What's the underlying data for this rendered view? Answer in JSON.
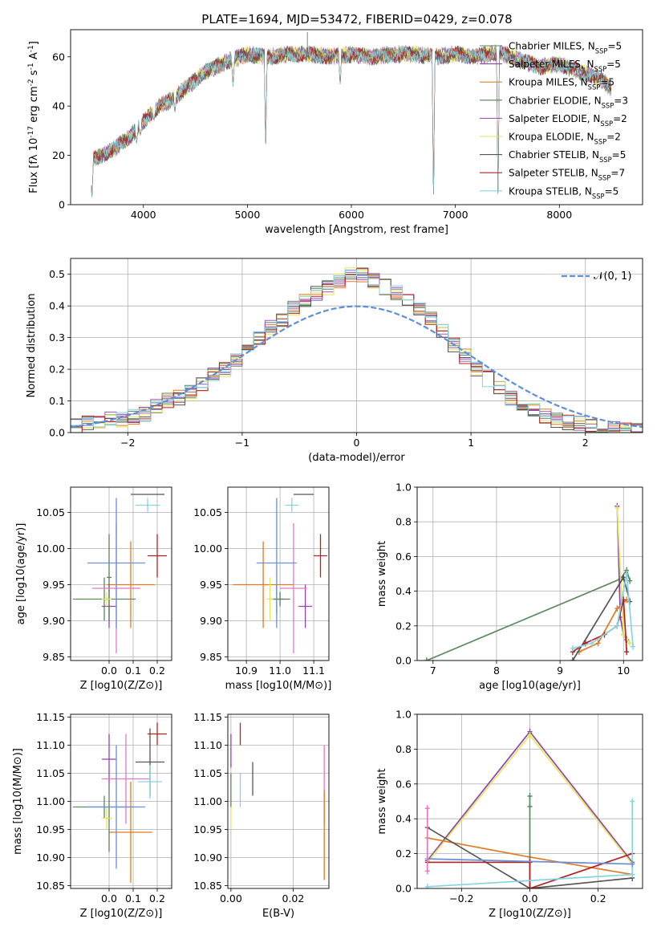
{
  "palette": [
    "#5a8a5e",
    "#8e44ad",
    "#e07b24",
    "#5b7e5d",
    "#9b59b6",
    "#e6e65a",
    "#555555",
    "#b22222",
    "#86d4e0",
    "#e377c2",
    "#6a8fd8"
  ],
  "chart_data": [
    {
      "id": "spectrum",
      "type": "line",
      "title": "PLATE=1694, MJD=53472, FIBERID=0429, z=0.078",
      "xlabel": "wavelength [Angstrom, rest frame]",
      "ylabel": "Flux [f_λ 10^-17 erg cm^-2 s^-1 A^-1]",
      "xlim": [
        3300,
        8800
      ],
      "ylim": [
        0,
        71
      ],
      "xticks": [
        4000,
        5000,
        6000,
        7000,
        8000
      ],
      "yticks": [
        0,
        20,
        40,
        60
      ],
      "legend_position": "upper right",
      "series": [
        {
          "name": "Chabrier MILES, N_SSP=5",
          "color": "#5a8a5e"
        },
        {
          "name": "Salpeter MILES, N_SSP=5",
          "color": "#8e44ad"
        },
        {
          "name": "Kroupa MILES, N_SSP=5",
          "color": "#e07b24"
        },
        {
          "name": "Chabrier ELODIE, N_SSP=3",
          "color": "#5b7e5d"
        },
        {
          "name": "Salpeter ELODIE, N_SSP=2",
          "color": "#9b59b6"
        },
        {
          "name": "Kroupa ELODIE, N_SSP=2",
          "color": "#e6e65a"
        },
        {
          "name": "Chabrier STELIB, N_SSP=5",
          "color": "#555555"
        },
        {
          "name": "Salpeter STELIB, N_SSP=7",
          "color": "#b22222"
        },
        {
          "name": "Kroupa STELIB, N_SSP=5",
          "color": "#86d4e0"
        }
      ],
      "continuum": {
        "x": [
          3500,
          3700,
          3850,
          3950,
          4050,
          4150,
          4250,
          4400,
          4600,
          4800,
          5000,
          5200,
          5400,
          5600,
          5800,
          6000,
          6200,
          6400,
          6600,
          6800,
          7000,
          7200,
          7400,
          7600,
          7800,
          8000,
          8200,
          8400,
          8500
        ],
        "y": [
          18,
          22,
          27,
          31,
          36,
          40,
          42,
          47,
          54,
          58,
          61,
          60,
          61,
          61,
          60,
          61,
          60,
          61,
          61,
          60,
          61,
          60,
          62,
          59,
          56,
          57,
          54,
          51,
          47
        ]
      },
      "drops": [
        {
          "x": 3505,
          "y": 2
        },
        {
          "x": 3935,
          "y": 25
        },
        {
          "x": 3972,
          "y": 28
        },
        {
          "x": 4102,
          "y": 34
        },
        {
          "x": 4303,
          "y": 37
        },
        {
          "x": 4862,
          "y": 48
        },
        {
          "x": 5176,
          "y": 22
        },
        {
          "x": 5892,
          "y": 48
        },
        {
          "x": 6790,
          "y": 0
        },
        {
          "x": 7410,
          "y": 0
        }
      ],
      "spikes": [
        {
          "x": 5577,
          "y": 70
        }
      ]
    },
    {
      "id": "residuals",
      "type": "histogram",
      "xlabel": "(data-model)/error",
      "ylabel": "Normed distribution",
      "xlim": [
        -2.5,
        2.5
      ],
      "ylim": [
        0,
        0.55
      ],
      "xticks": [
        -2,
        -1,
        0,
        1,
        2
      ],
      "yticks": [
        0,
        0.1,
        0.2,
        0.3,
        0.4,
        0.5
      ],
      "bin_width": 0.1,
      "reference": {
        "name": "𝒩(0, 1)",
        "color": "#5f8fd7"
      },
      "shape_values": [
        0.02,
        0.03,
        0.03,
        0.04,
        0.04,
        0.05,
        0.06,
        0.08,
        0.1,
        0.11,
        0.13,
        0.15,
        0.18,
        0.2,
        0.23,
        0.27,
        0.3,
        0.33,
        0.36,
        0.39,
        0.42,
        0.44,
        0.46,
        0.48,
        0.5,
        0.5,
        0.48,
        0.46,
        0.44,
        0.42,
        0.39,
        0.36,
        0.32,
        0.28,
        0.24,
        0.2,
        0.17,
        0.14,
        0.11,
        0.09,
        0.07,
        0.05,
        0.04,
        0.03,
        0.03,
        0.02,
        0.02,
        0.01,
        0.01,
        0.01
      ]
    },
    {
      "id": "age_vs_Z",
      "type": "errorbar",
      "xlabel": "Z [log10(Z/Z⊙)]",
      "ylabel": "age  [log10(age/yr)]",
      "xlim": [
        -0.16,
        0.26
      ],
      "ylim": [
        9.845,
        10.085
      ],
      "xticks": [
        0.0,
        0.1,
        0.2
      ],
      "yticks": [
        9.85,
        9.9,
        9.95,
        10.0,
        10.05
      ],
      "points": [
        {
          "x": -0.02,
          "y": 9.93,
          "xerr": 0.13,
          "yerr": 0.03,
          "color": "#5a8a5e"
        },
        {
          "x": 0.0,
          "y": 9.92,
          "xerr": 0.03,
          "yerr": 0.03,
          "color": "#8e44ad"
        },
        {
          "x": 0.09,
          "y": 9.95,
          "xerr": 0.1,
          "yerr": 0.06,
          "color": "#e07b24"
        },
        {
          "x": 0.0,
          "y": 9.96,
          "xerr": 0.01,
          "yerr": 0.06,
          "color": "#5b7e5d"
        },
        {
          "x": 0.03,
          "y": 9.945,
          "xerr": 0.1,
          "yerr": 0.09,
          "color": "#e377c2"
        },
        {
          "x": -0.01,
          "y": 9.93,
          "xerr": 0.02,
          "yerr": 0.01,
          "color": "#e6e65a"
        },
        {
          "x": 0.03,
          "y": 9.98,
          "xerr": 0.12,
          "yerr": 0.09,
          "color": "#6a8fd8"
        },
        {
          "x": 0.16,
          "y": 10.075,
          "xerr": 0.07,
          "yerr": 0.0,
          "color": "#555555"
        },
        {
          "x": 0.2,
          "y": 9.99,
          "xerr": 0.04,
          "yerr": 0.03,
          "color": "#b22222"
        },
        {
          "x": 0.16,
          "y": 10.06,
          "xerr": 0.05,
          "yerr": 0.01,
          "color": "#86d4e0"
        }
      ]
    },
    {
      "id": "age_vs_mass",
      "type": "errorbar",
      "xlabel": "mass [log10(M/M⊙)]",
      "ylabel": "",
      "xlim": [
        10.845,
        11.145
      ],
      "ylim": [
        9.845,
        10.085
      ],
      "xticks": [
        10.9,
        11.0,
        11.1
      ],
      "yticks": [
        9.85,
        9.9,
        9.95,
        10.0,
        10.05
      ],
      "points": [
        {
          "x": 10.99,
          "y": 9.93,
          "xerr": 0.02,
          "yerr": 0.02,
          "color": "#5a8a5e"
        },
        {
          "x": 11.075,
          "y": 9.92,
          "xerr": 0.02,
          "yerr": 0.03,
          "color": "#8e44ad"
        },
        {
          "x": 10.95,
          "y": 9.95,
          "xerr": 0.09,
          "yerr": 0.06,
          "color": "#e07b24"
        },
        {
          "x": 11.0,
          "y": 9.93,
          "xerr": 0.03,
          "yerr": 0.01,
          "color": "#5b7e5d"
        },
        {
          "x": 11.04,
          "y": 9.945,
          "xerr": 0.04,
          "yerr": 0.09,
          "color": "#e377c2"
        },
        {
          "x": 10.97,
          "y": 9.93,
          "xerr": 0.01,
          "yerr": 0.03,
          "color": "#e6e65a"
        },
        {
          "x": 10.99,
          "y": 9.98,
          "xerr": 0.06,
          "yerr": 0.09,
          "color": "#6a8fd8"
        },
        {
          "x": 11.07,
          "y": 10.075,
          "xerr": 0.03,
          "yerr": 0.0,
          "color": "#555555"
        },
        {
          "x": 11.12,
          "y": 9.99,
          "xerr": 0.02,
          "yerr": 0.03,
          "color": "#b22222"
        },
        {
          "x": 11.035,
          "y": 10.06,
          "xerr": 0.02,
          "yerr": 0.01,
          "color": "#86d4e0"
        }
      ]
    },
    {
      "id": "weight_vs_age",
      "type": "line",
      "xlabel": "age  [log10(age/yr)]",
      "ylabel": "mass weight",
      "xlim": [
        6.75,
        10.3
      ],
      "ylim": [
        0,
        1
      ],
      "xticks": [
        7,
        8,
        9,
        10
      ],
      "yticks": [
        0,
        0.2,
        0.4,
        0.6,
        0.8,
        1.0
      ],
      "series": [
        {
          "color": "#5a8a5e",
          "x": [
            6.9,
            9.95,
            10.05,
            10.1
          ],
          "y": [
            0.0,
            0.47,
            0.52,
            0.46
          ]
        },
        {
          "color": "#8e44ad",
          "x": [
            9.9,
            9.95,
            10.0,
            10.05
          ],
          "y": [
            0.89,
            0.25,
            0.15,
            0.12
          ]
        },
        {
          "color": "#e07b24",
          "x": [
            9.3,
            9.6,
            9.9,
            10.05
          ],
          "y": [
            0.05,
            0.1,
            0.3,
            0.35
          ]
        },
        {
          "color": "#e6e65a",
          "x": [
            9.9,
            10.0,
            10.1
          ],
          "y": [
            0.88,
            0.15,
            0.1
          ]
        },
        {
          "color": "#555555",
          "x": [
            9.2,
            10.0,
            10.1
          ],
          "y": [
            0.0,
            0.48,
            0.34
          ]
        },
        {
          "color": "#b22222",
          "x": [
            9.2,
            9.4,
            9.7,
            9.9,
            10.0,
            10.05
          ],
          "y": [
            0.05,
            0.1,
            0.15,
            0.2,
            0.35,
            0.05
          ]
        },
        {
          "color": "#86d4e0",
          "x": [
            9.2,
            9.5,
            9.9,
            10.05,
            10.15
          ],
          "y": [
            0.07,
            0.1,
            0.2,
            0.5,
            0.08
          ]
        }
      ]
    },
    {
      "id": "mass_vs_Z",
      "type": "errorbar",
      "xlabel": "Z [log10(Z/Z⊙)]",
      "ylabel": "mass [log10(M/M⊙)]",
      "xlim": [
        -0.16,
        0.26
      ],
      "ylim": [
        10.845,
        11.155
      ],
      "xticks": [
        0.0,
        0.1,
        0.2
      ],
      "yticks": [
        10.85,
        10.9,
        10.95,
        11.0,
        11.05,
        11.1,
        11.15
      ],
      "points": [
        {
          "x": -0.02,
          "y": 10.99,
          "xerr": 0.13,
          "yerr": 0.02,
          "color": "#5a8a5e"
        },
        {
          "x": 0.0,
          "y": 11.075,
          "xerr": 0.03,
          "yerr": 0.045,
          "color": "#8e44ad"
        },
        {
          "x": 0.09,
          "y": 10.945,
          "xerr": 0.09,
          "yerr": 0.09,
          "color": "#e07b24"
        },
        {
          "x": 0.0,
          "y": 10.97,
          "xerr": 0.01,
          "yerr": 0.06,
          "color": "#5b7e5d"
        },
        {
          "x": 0.07,
          "y": 11.04,
          "xerr": 0.1,
          "yerr": 0.08,
          "color": "#e377c2"
        },
        {
          "x": -0.01,
          "y": 10.97,
          "xerr": 0.02,
          "yerr": 0.02,
          "color": "#e6e65a"
        },
        {
          "x": 0.03,
          "y": 10.99,
          "xerr": 0.12,
          "yerr": 0.11,
          "color": "#6a8fd8"
        },
        {
          "x": 0.17,
          "y": 11.07,
          "xerr": 0.06,
          "yerr": 0.06,
          "color": "#555555"
        },
        {
          "x": 0.2,
          "y": 11.12,
          "xerr": 0.04,
          "yerr": 0.02,
          "color": "#b22222"
        },
        {
          "x": 0.17,
          "y": 11.035,
          "xerr": 0.05,
          "yerr": 0.03,
          "color": "#86d4e0"
        }
      ]
    },
    {
      "id": "mass_vs_ebv",
      "type": "errorbar",
      "xlabel": "E(B-V)",
      "ylabel": "",
      "xlim": [
        -0.001,
        0.0315
      ],
      "ylim": [
        10.845,
        11.155
      ],
      "xticks": [
        0.0,
        0.02
      ],
      "yticks": [
        10.85,
        10.9,
        10.95,
        11.0,
        11.05,
        11.1,
        11.15
      ],
      "points": [
        {
          "x": 0.0,
          "y": 11.0,
          "xerr": 0.0,
          "yerr": 0.05,
          "color": "#e6e65a"
        },
        {
          "x": 0.0,
          "y": 11.09,
          "xerr": 0.0,
          "yerr": 0.03,
          "color": "#8e44ad"
        },
        {
          "x": 0.0,
          "y": 11.02,
          "xerr": 0.0,
          "yerr": 0.03,
          "color": "#5a8a5e"
        },
        {
          "x": 0.003,
          "y": 11.12,
          "xerr": 0.0,
          "yerr": 0.02,
          "color": "#b22222"
        },
        {
          "x": 0.003,
          "y": 11.02,
          "xerr": 0.0,
          "yerr": 0.03,
          "color": "#86d4e0"
        },
        {
          "x": 0.007,
          "y": 11.04,
          "xerr": 0.0,
          "yerr": 0.03,
          "color": "#555555"
        },
        {
          "x": 0.03,
          "y": 11.03,
          "xerr": 0.0,
          "yerr": 0.07,
          "color": "#e377c2"
        },
        {
          "x": 0.03,
          "y": 10.94,
          "xerr": 0.0,
          "yerr": 0.08,
          "color": "#e07b24"
        }
      ]
    },
    {
      "id": "weight_vs_Z",
      "type": "line",
      "xlabel": "Z [log10(Z/Z⊙)]",
      "ylabel": "mass weight",
      "xlim": [
        -0.33,
        0.33
      ],
      "ylim": [
        0,
        1
      ],
      "xticks": [
        -0.2,
        0.0,
        0.2
      ],
      "yticks": [
        0,
        0.2,
        0.4,
        0.6,
        0.8,
        1.0
      ],
      "series": [
        {
          "color": "#8e44ad",
          "x": [
            -0.3,
            0.0,
            0.3
          ],
          "y": [
            0.16,
            0.9,
            0.15
          ]
        },
        {
          "color": "#e6e65a",
          "x": [
            -0.3,
            0.0,
            0.3
          ],
          "y": [
            0.15,
            0.88,
            0.14
          ]
        },
        {
          "color": "#e07b24",
          "x": [
            -0.3,
            0.0,
            0.3
          ],
          "y": [
            0.29,
            0.18,
            0.08
          ]
        },
        {
          "color": "#555555",
          "x": [
            -0.3,
            0.0,
            0.3
          ],
          "y": [
            0.35,
            0.0,
            0.06
          ]
        },
        {
          "color": "#5a8a5e",
          "x": [
            0.0,
            0.0,
            0.0
          ],
          "y": [
            0.0,
            0.53,
            0.47
          ]
        },
        {
          "color": "#b22222",
          "x": [
            -0.3,
            0.0,
            0.0,
            0.3
          ],
          "y": [
            0.15,
            0.15,
            0.0,
            0.2
          ]
        },
        {
          "color": "#86d4e0",
          "x": [
            -0.3,
            0.3,
            0.3
          ],
          "y": [
            0.01,
            0.08,
            0.5
          ]
        },
        {
          "color": "#6a8fd8",
          "x": [
            -0.3,
            0.3
          ],
          "y": [
            0.17,
            0.14
          ]
        },
        {
          "color": "#e377c2",
          "x": [
            -0.3,
            -0.3
          ],
          "y": [
            0.1,
            0.46
          ]
        }
      ]
    }
  ]
}
